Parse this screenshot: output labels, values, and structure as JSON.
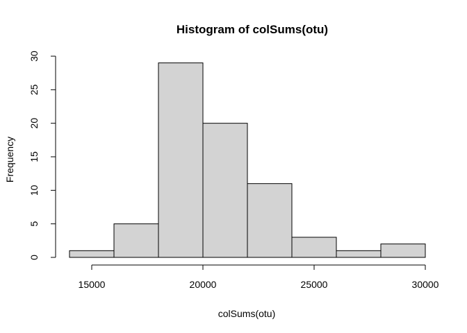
{
  "chart_data": {
    "type": "bar",
    "title": "Histogram of colSums(otu)",
    "xlabel": "colSums(otu)",
    "ylabel": "Frequency",
    "bins": [
      {
        "start": 14000,
        "end": 16000,
        "count": 1
      },
      {
        "start": 16000,
        "end": 18000,
        "count": 5
      },
      {
        "start": 18000,
        "end": 20000,
        "count": 29
      },
      {
        "start": 20000,
        "end": 22000,
        "count": 20
      },
      {
        "start": 22000,
        "end": 24000,
        "count": 11
      },
      {
        "start": 24000,
        "end": 26000,
        "count": 3
      },
      {
        "start": 26000,
        "end": 28000,
        "count": 1
      },
      {
        "start": 28000,
        "end": 30000,
        "count": 2
      }
    ],
    "xlim": [
      14000,
      30000
    ],
    "ylim": [
      0,
      30
    ],
    "xticks": [
      "15000",
      "20000",
      "25000",
      "30000"
    ],
    "yticks": [
      "0",
      "5",
      "10",
      "15",
      "20",
      "25",
      "30"
    ],
    "grid": false,
    "colors": {
      "bar_fill": "#d3d3d3",
      "bar_stroke": "#000000"
    }
  }
}
